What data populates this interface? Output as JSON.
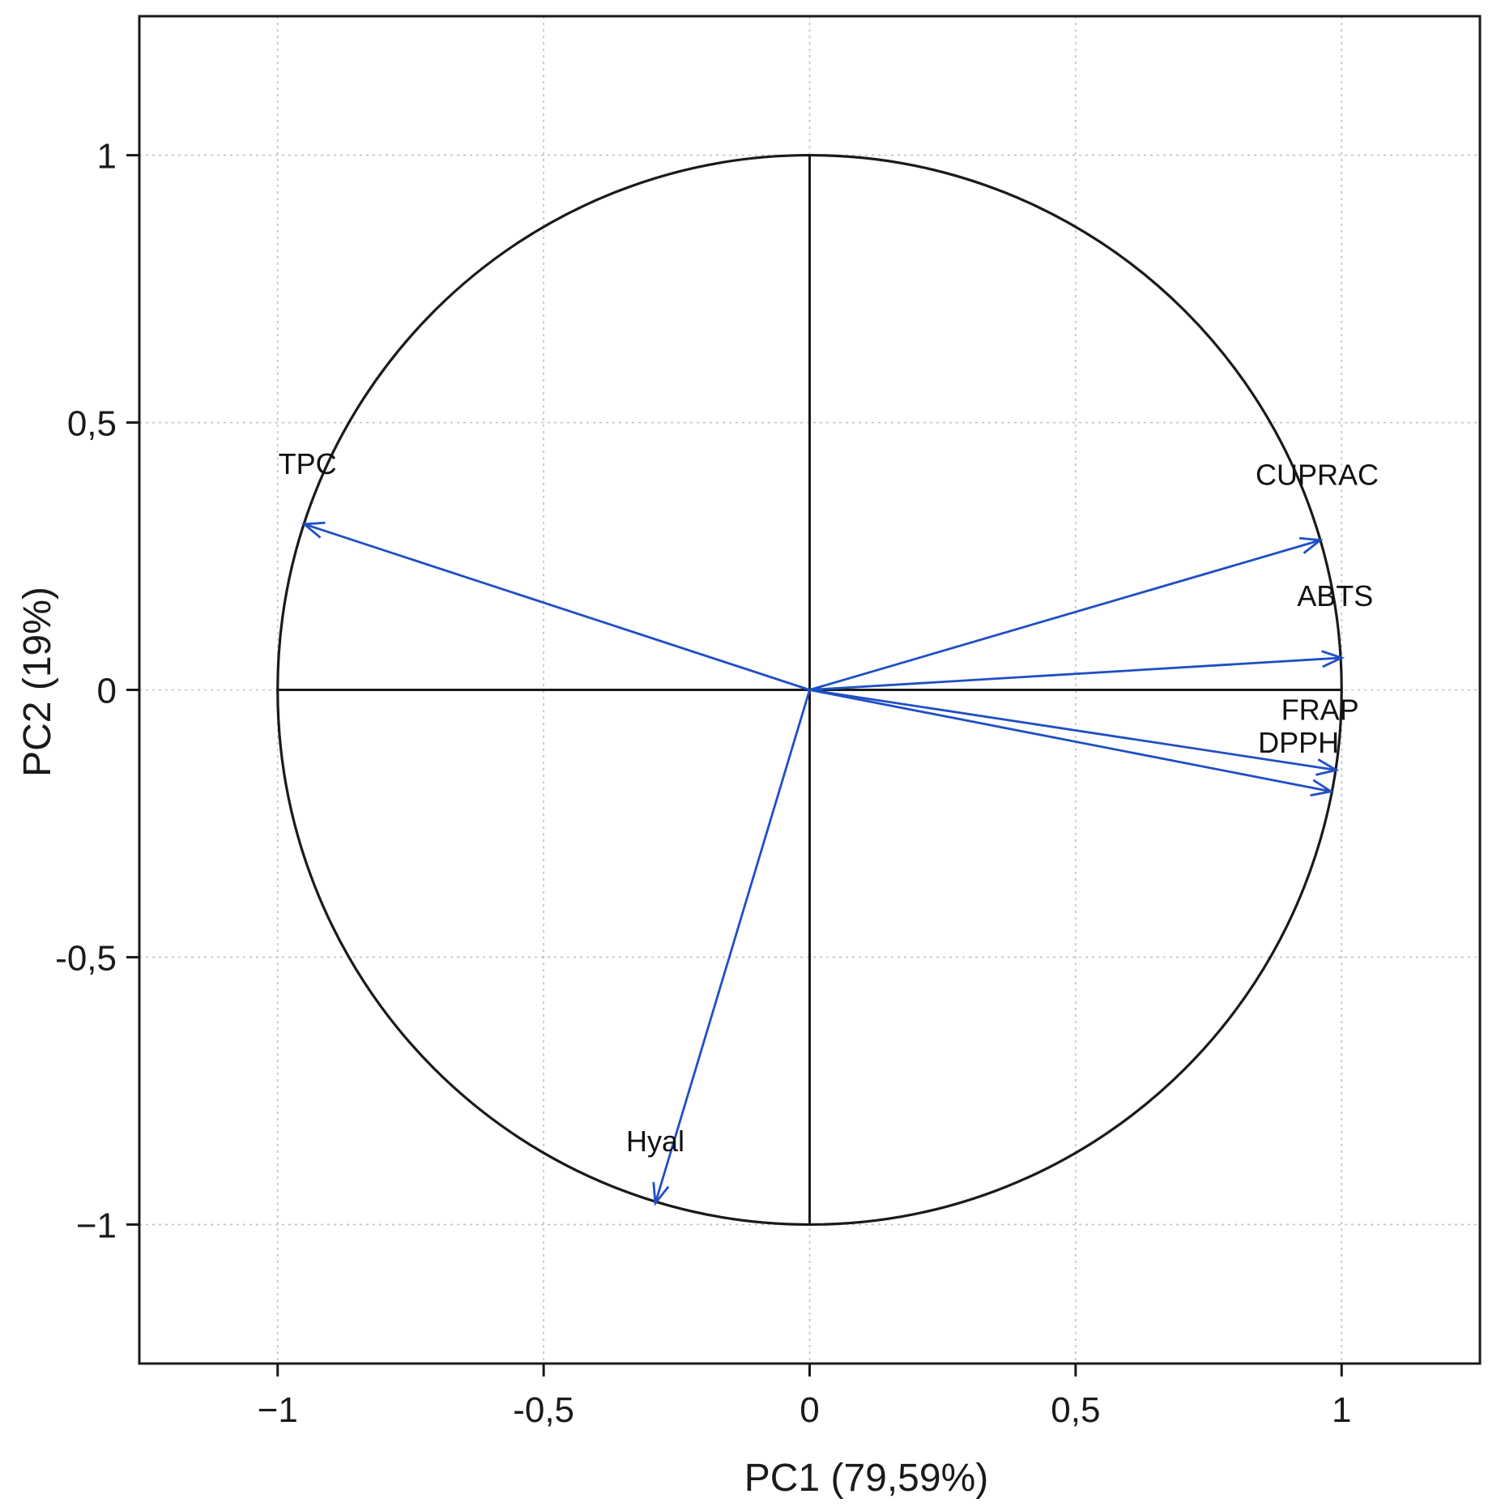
{
  "chart_data": {
    "type": "scatter",
    "subtype": "pca-correlation-circle",
    "title": "",
    "xlabel": "PC1 (79,59%)",
    "ylabel": "PC2 (19%)",
    "xlim": [
      -1.26,
      1.26
    ],
    "ylim": [
      -1.26,
      1.26
    ],
    "x_ticks": [
      {
        "value": -1,
        "label": "−1"
      },
      {
        "value": -0.5,
        "label": "-0,5"
      },
      {
        "value": 0,
        "label": "0"
      },
      {
        "value": 0.5,
        "label": "0,5"
      },
      {
        "value": 1,
        "label": "1"
      }
    ],
    "y_ticks": [
      {
        "value": -1,
        "label": "−1"
      },
      {
        "value": -0.5,
        "label": "-0,5"
      },
      {
        "value": 0,
        "label": "0"
      },
      {
        "value": 0.5,
        "label": "0,5"
      },
      {
        "value": 1,
        "label": "1"
      }
    ],
    "grid": true,
    "unit_circle": true,
    "variables": [
      {
        "name": "TPC",
        "x": -0.95,
        "y": 0.31
      },
      {
        "name": "CUPRAC",
        "x": 0.96,
        "y": 0.28
      },
      {
        "name": "ABTS",
        "x": 1.0,
        "y": 0.06
      },
      {
        "name": "FRAP",
        "x": 0.99,
        "y": -0.15
      },
      {
        "name": "DPPH",
        "x": 0.98,
        "y": -0.19
      },
      {
        "name": "Hyal",
        "x": -0.29,
        "y": -0.96
      }
    ],
    "colors": {
      "arrow": "#1f4fc4",
      "frame": "#1a1a1a",
      "circle": "#1a1a1a",
      "grid": "#c0c0c0",
      "x_axis_title": "#1a1a1a",
      "y_axis_title": "#c8201e"
    }
  }
}
